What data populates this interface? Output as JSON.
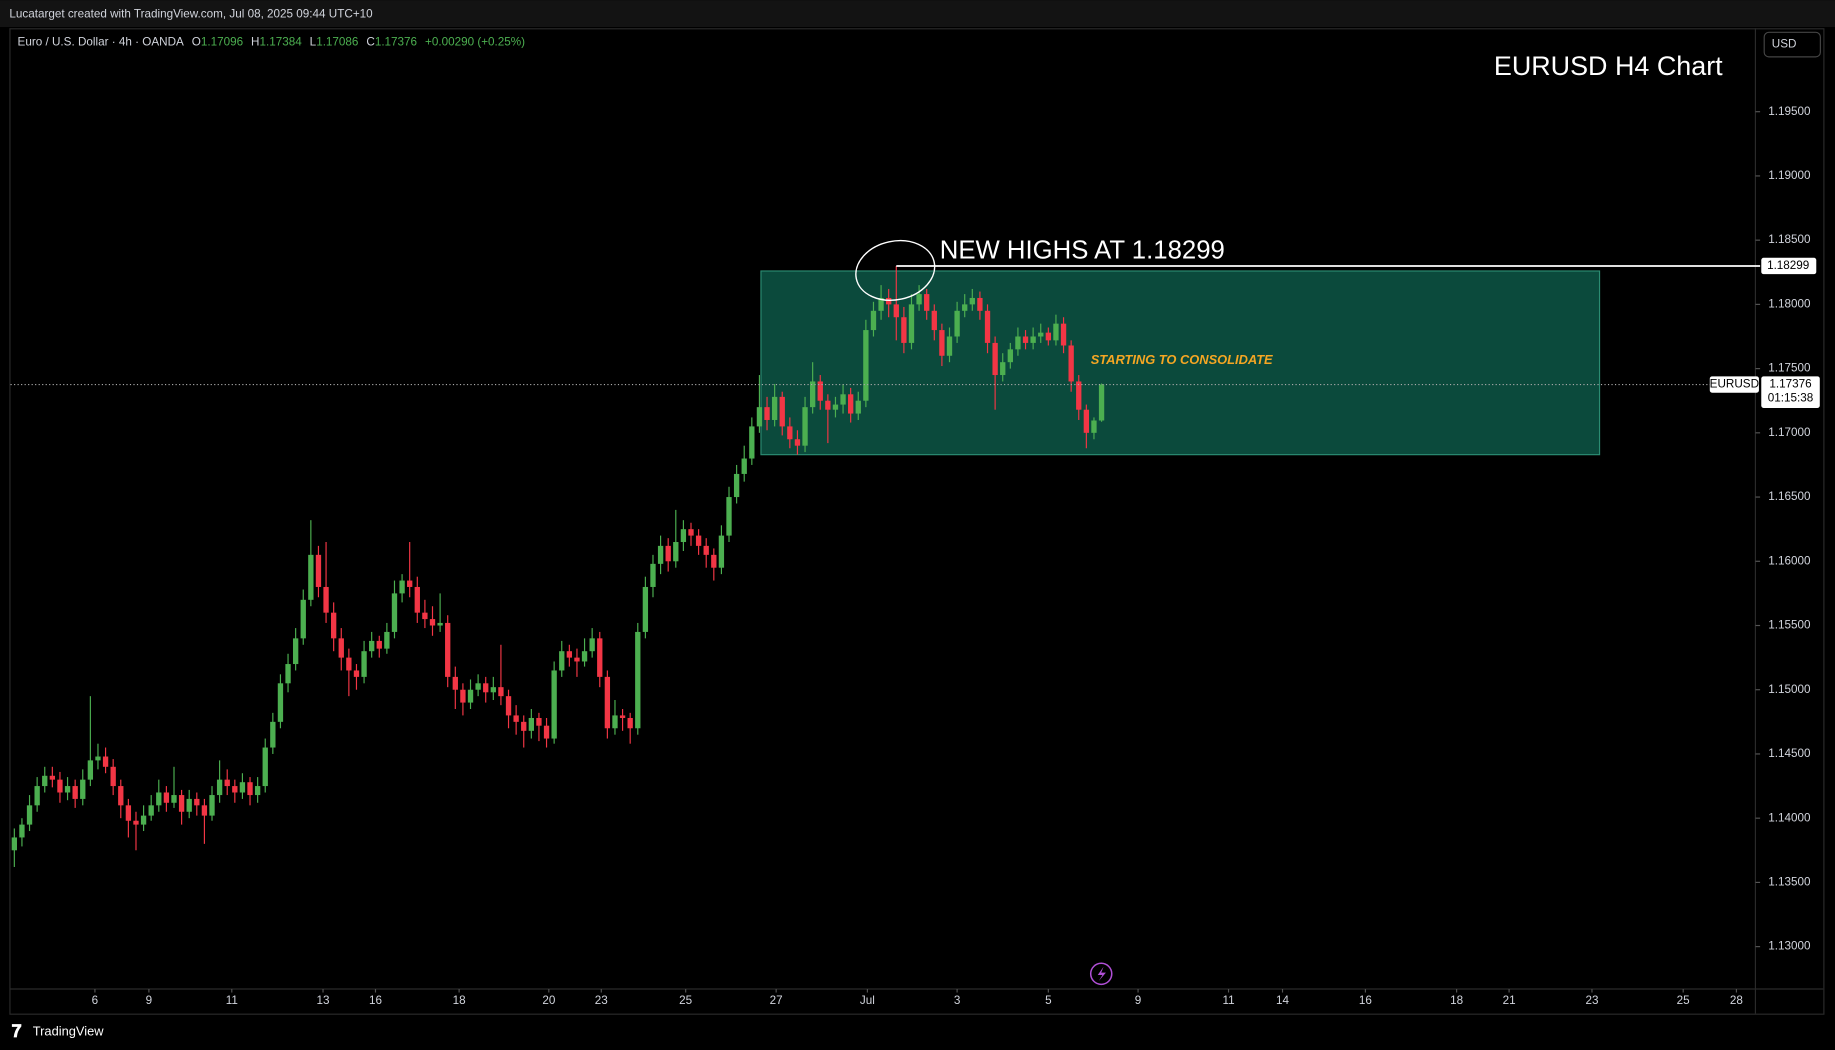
{
  "header": "Lucatarget created with TradingView.com, Jul 08, 2025 09:44 UTC+10",
  "footer": "TradingView",
  "currency": "USD",
  "chart_data": {
    "type": "candlestick",
    "title": "EURUSD H4 Chart",
    "legend": {
      "symbol": "Euro / U.S. Dollar · 4h · OANDA",
      "items": [
        {
          "key": "O",
          "value": 1.17096
        },
        {
          "key": "H",
          "value": 1.17384
        },
        {
          "key": "L",
          "value": 1.17086
        },
        {
          "key": "C",
          "value": 1.17376
        }
      ],
      "change": "+0.00290 (+0.25%)"
    },
    "up_color": "#4caf50",
    "down_color": "#f23645",
    "ohlc": [
      [
        1.1375,
        1.1392,
        1.1362,
        1.1385
      ],
      [
        1.1385,
        1.14,
        1.1378,
        1.1395
      ],
      [
        1.1395,
        1.1418,
        1.139,
        1.141
      ],
      [
        1.141,
        1.1432,
        1.1405,
        1.1425
      ],
      [
        1.1425,
        1.144,
        1.142,
        1.1433
      ],
      [
        1.1433,
        1.144,
        1.1424,
        1.143
      ],
      [
        1.143,
        1.1436,
        1.1412,
        1.142
      ],
      [
        1.142,
        1.1432,
        1.1414,
        1.1425
      ],
      [
        1.1425,
        1.143,
        1.1408,
        1.1415
      ],
      [
        1.1415,
        1.1438,
        1.141,
        1.143
      ],
      [
        1.143,
        1.1495,
        1.1425,
        1.1445
      ],
      [
        1.1445,
        1.1458,
        1.1438,
        1.1448
      ],
      [
        1.1448,
        1.1455,
        1.1435,
        1.144
      ],
      [
        1.144,
        1.1446,
        1.1418,
        1.1425
      ],
      [
        1.1425,
        1.143,
        1.14,
        1.141
      ],
      [
        1.141,
        1.1415,
        1.1385,
        1.1398
      ],
      [
        1.1398,
        1.1405,
        1.1375,
        1.1395
      ],
      [
        1.1395,
        1.141,
        1.139,
        1.1402
      ],
      [
        1.1402,
        1.1418,
        1.1398,
        1.141
      ],
      [
        1.141,
        1.143,
        1.1405,
        1.142
      ],
      [
        1.142,
        1.1425,
        1.1405,
        1.1412
      ],
      [
        1.1412,
        1.144,
        1.1408,
        1.1418
      ],
      [
        1.1418,
        1.1422,
        1.1395,
        1.1405
      ],
      [
        1.1405,
        1.1422,
        1.14,
        1.1415
      ],
      [
        1.1415,
        1.142,
        1.1402,
        1.141
      ],
      [
        1.141,
        1.1415,
        1.138,
        1.1402
      ],
      [
        1.1402,
        1.1425,
        1.1398,
        1.1418
      ],
      [
        1.1418,
        1.1445,
        1.1412,
        1.143
      ],
      [
        1.143,
        1.1438,
        1.1418,
        1.1425
      ],
      [
        1.1425,
        1.143,
        1.1412,
        1.142
      ],
      [
        1.142,
        1.1435,
        1.1415,
        1.1428
      ],
      [
        1.1428,
        1.1432,
        1.141,
        1.1418
      ],
      [
        1.1418,
        1.1432,
        1.1412,
        1.1425
      ],
      [
        1.1425,
        1.1462,
        1.142,
        1.1455
      ],
      [
        1.1455,
        1.1482,
        1.145,
        1.1475
      ],
      [
        1.1475,
        1.1512,
        1.147,
        1.1505
      ],
      [
        1.1505,
        1.1528,
        1.1498,
        1.152
      ],
      [
        1.152,
        1.1548,
        1.1515,
        1.154
      ],
      [
        1.154,
        1.1578,
        1.1535,
        1.157
      ],
      [
        1.157,
        1.1632,
        1.1565,
        1.1605
      ],
      [
        1.1605,
        1.1612,
        1.1572,
        1.158
      ],
      [
        1.158,
        1.1615,
        1.1552,
        1.156
      ],
      [
        1.156,
        1.1568,
        1.153,
        1.154
      ],
      [
        1.154,
        1.1548,
        1.1515,
        1.1525
      ],
      [
        1.1525,
        1.1532,
        1.1495,
        1.1515
      ],
      [
        1.1515,
        1.152,
        1.15,
        1.151
      ],
      [
        1.151,
        1.1538,
        1.1505,
        1.153
      ],
      [
        1.153,
        1.1545,
        1.1525,
        1.1538
      ],
      [
        1.1538,
        1.1542,
        1.1525,
        1.1532
      ],
      [
        1.1532,
        1.1552,
        1.1528,
        1.1545
      ],
      [
        1.1545,
        1.1585,
        1.154,
        1.1575
      ],
      [
        1.1575,
        1.159,
        1.1568,
        1.1585
      ],
      [
        1.1585,
        1.1615,
        1.1572,
        1.158
      ],
      [
        1.158,
        1.1588,
        1.1552,
        1.156
      ],
      [
        1.156,
        1.157,
        1.1548,
        1.1555
      ],
      [
        1.1555,
        1.1565,
        1.1542,
        1.155
      ],
      [
        1.155,
        1.1575,
        1.1545,
        1.1552
      ],
      [
        1.1552,
        1.1558,
        1.1502,
        1.151
      ],
      [
        1.151,
        1.1518,
        1.1485,
        1.15
      ],
      [
        1.15,
        1.1505,
        1.148,
        1.149
      ],
      [
        1.149,
        1.1508,
        1.1485,
        1.15
      ],
      [
        1.15,
        1.1512,
        1.1495,
        1.1505
      ],
      [
        1.1505,
        1.151,
        1.149,
        1.1498
      ],
      [
        1.1498,
        1.151,
        1.1492,
        1.1502
      ],
      [
        1.1502,
        1.1535,
        1.1488,
        1.1495
      ],
      [
        1.1495,
        1.15,
        1.147,
        1.148
      ],
      [
        1.148,
        1.1488,
        1.1465,
        1.1475
      ],
      [
        1.1475,
        1.148,
        1.1455,
        1.1468
      ],
      [
        1.1468,
        1.1485,
        1.1462,
        1.1478
      ],
      [
        1.1478,
        1.1482,
        1.146,
        1.1472
      ],
      [
        1.1472,
        1.1478,
        1.1455,
        1.1462
      ],
      [
        1.1462,
        1.1522,
        1.1458,
        1.1515
      ],
      [
        1.1515,
        1.1538,
        1.151,
        1.153
      ],
      [
        1.153,
        1.1535,
        1.1518,
        1.1525
      ],
      [
        1.1525,
        1.1532,
        1.151,
        1.1522
      ],
      [
        1.1522,
        1.154,
        1.1518,
        1.153
      ],
      [
        1.153,
        1.1548,
        1.1525,
        1.154
      ],
      [
        1.154,
        1.1545,
        1.1502,
        1.151
      ],
      [
        1.151,
        1.1515,
        1.1462,
        1.147
      ],
      [
        1.147,
        1.1492,
        1.1465,
        1.148
      ],
      [
        1.148,
        1.1485,
        1.1468,
        1.1478
      ],
      [
        1.1478,
        1.1482,
        1.1458,
        1.147
      ],
      [
        1.147,
        1.1552,
        1.1465,
        1.1545
      ],
      [
        1.1545,
        1.1588,
        1.154,
        1.158
      ],
      [
        1.158,
        1.1605,
        1.1572,
        1.1598
      ],
      [
        1.1598,
        1.162,
        1.159,
        1.1612
      ],
      [
        1.1612,
        1.1618,
        1.1592,
        1.16
      ],
      [
        1.16,
        1.164,
        1.1595,
        1.1615
      ],
      [
        1.1615,
        1.1632,
        1.1608,
        1.1625
      ],
      [
        1.1625,
        1.163,
        1.1612,
        1.162
      ],
      [
        1.162,
        1.1625,
        1.1605,
        1.1612
      ],
      [
        1.1612,
        1.1618,
        1.1595,
        1.1605
      ],
      [
        1.1605,
        1.161,
        1.1585,
        1.1595
      ],
      [
        1.1595,
        1.1628,
        1.159,
        1.162
      ],
      [
        1.162,
        1.1658,
        1.1615,
        1.165
      ],
      [
        1.165,
        1.1675,
        1.1645,
        1.1668
      ],
      [
        1.1668,
        1.169,
        1.1662,
        1.168
      ],
      [
        1.168,
        1.1712,
        1.1675,
        1.1705
      ],
      [
        1.1705,
        1.1745,
        1.17,
        1.172
      ],
      [
        1.172,
        1.1728,
        1.1702,
        1.171
      ],
      [
        1.171,
        1.1738,
        1.1705,
        1.1728
      ],
      [
        1.1728,
        1.1732,
        1.1698,
        1.1705
      ],
      [
        1.1705,
        1.1712,
        1.1688,
        1.1695
      ],
      [
        1.1695,
        1.1702,
        1.1683,
        1.169
      ],
      [
        1.169,
        1.1728,
        1.1685,
        1.172
      ],
      [
        1.172,
        1.1755,
        1.1715,
        1.174
      ],
      [
        1.174,
        1.1745,
        1.1718,
        1.1725
      ],
      [
        1.1725,
        1.173,
        1.1692,
        1.1718
      ],
      [
        1.1718,
        1.1728,
        1.1712,
        1.1722
      ],
      [
        1.1722,
        1.1738,
        1.1715,
        1.173
      ],
      [
        1.173,
        1.1735,
        1.1708,
        1.1715
      ],
      [
        1.1715,
        1.1732,
        1.171,
        1.1725
      ],
      [
        1.1725,
        1.1788,
        1.172,
        1.178
      ],
      [
        1.178,
        1.1802,
        1.1775,
        1.1795
      ],
      [
        1.1795,
        1.1815,
        1.1788,
        1.1805
      ],
      [
        1.1805,
        1.1812,
        1.179,
        1.18
      ],
      [
        1.18,
        1.18299,
        1.1772,
        1.179
      ],
      [
        1.179,
        1.1798,
        1.1762,
        1.177
      ],
      [
        1.177,
        1.1808,
        1.1765,
        1.18
      ],
      [
        1.18,
        1.1815,
        1.1795,
        1.1808
      ],
      [
        1.1808,
        1.1812,
        1.1788,
        1.1795
      ],
      [
        1.1795,
        1.18,
        1.1772,
        1.178
      ],
      [
        1.178,
        1.1785,
        1.1752,
        1.176
      ],
      [
        1.176,
        1.1782,
        1.1755,
        1.1775
      ],
      [
        1.1775,
        1.1802,
        1.177,
        1.1795
      ],
      [
        1.1795,
        1.1808,
        1.179,
        1.18
      ],
      [
        1.18,
        1.1812,
        1.1795,
        1.1805
      ],
      [
        1.1805,
        1.181,
        1.1788,
        1.1795
      ],
      [
        1.1795,
        1.18,
        1.1762,
        1.177
      ],
      [
        1.177,
        1.1775,
        1.1718,
        1.1745
      ],
      [
        1.1745,
        1.1762,
        1.174,
        1.1755
      ],
      [
        1.1755,
        1.177,
        1.175,
        1.1765
      ],
      [
        1.1765,
        1.1782,
        1.176,
        1.1775
      ],
      [
        1.1775,
        1.178,
        1.1765,
        1.177
      ],
      [
        1.177,
        1.1782,
        1.1765,
        1.1775
      ],
      [
        1.1775,
        1.1785,
        1.177,
        1.1778
      ],
      [
        1.1778,
        1.1782,
        1.1768,
        1.1772
      ],
      [
        1.1772,
        1.1792,
        1.1768,
        1.1785
      ],
      [
        1.1785,
        1.179,
        1.1762,
        1.1768
      ],
      [
        1.1768,
        1.1772,
        1.1732,
        1.174
      ],
      [
        1.174,
        1.1745,
        1.171,
        1.1718
      ],
      [
        1.1718,
        1.1722,
        1.1688,
        1.17
      ],
      [
        1.17,
        1.1712,
        1.1695,
        1.17096
      ],
      [
        1.17096,
        1.17384,
        1.17086,
        1.17376
      ]
    ],
    "xlim": [
      -0.5,
      229
    ],
    "xticks": [
      {
        "value": 10.6,
        "label": "6"
      },
      {
        "value": 17.7,
        "label": "9"
      },
      {
        "value": 28.6,
        "label": "11"
      },
      {
        "value": 40.6,
        "label": "13"
      },
      {
        "value": 47.5,
        "label": "16"
      },
      {
        "value": 58.5,
        "label": "18"
      },
      {
        "value": 70.3,
        "label": "20"
      },
      {
        "value": 77.2,
        "label": "23"
      },
      {
        "value": 88.3,
        "label": "25"
      },
      {
        "value": 100.2,
        "label": "27"
      },
      {
        "value": 112.2,
        "label": "Jul"
      },
      {
        "value": 124,
        "label": "3"
      },
      {
        "value": 136,
        "label": "5"
      },
      {
        "value": 147.8,
        "label": "9"
      },
      {
        "value": 159.7,
        "label": "11"
      },
      {
        "value": 166.8,
        "label": "14"
      },
      {
        "value": 177.7,
        "label": "16"
      },
      {
        "value": 189.7,
        "label": "18"
      },
      {
        "value": 196.6,
        "label": "21"
      },
      {
        "value": 207.5,
        "label": "23"
      },
      {
        "value": 219.5,
        "label": "25"
      },
      {
        "value": 226.5,
        "label": "28"
      }
    ],
    "ylim": [
      1.1267,
      1.2015
    ],
    "yticks": [
      {
        "value": 1.13,
        "label": "1.13000"
      },
      {
        "value": 1.135,
        "label": "1.13500"
      },
      {
        "value": 1.14,
        "label": "1.14000"
      },
      {
        "value": 1.145,
        "label": "1.14500"
      },
      {
        "value": 1.15,
        "label": "1.15000"
      },
      {
        "value": 1.155,
        "label": "1.15500"
      },
      {
        "value": 1.16,
        "label": "1.16000"
      },
      {
        "value": 1.165,
        "label": "1.16500"
      },
      {
        "value": 1.17,
        "label": "1.17000"
      },
      {
        "value": 1.175,
        "label": "1.17500"
      },
      {
        "value": 1.18,
        "label": "1.18000"
      },
      {
        "value": 1.185,
        "label": "1.18500"
      },
      {
        "value": 1.19,
        "label": "1.19000"
      },
      {
        "value": 1.195,
        "label": "1.19500"
      }
    ],
    "hline": {
      "value": 1.18299,
      "label": "1.18299",
      "from": 116
    },
    "annotation": "NEW HIGHS AT 1.18299",
    "zone": {
      "x": [
        98.2,
        208.5
      ],
      "y": [
        1.1683,
        1.1826
      ],
      "label": "STARTING TO CONSOLIDATE",
      "color": "#0b4a3c"
    },
    "last_price": {
      "symbol": "EURUSD",
      "value": 1.17376,
      "countdown": "01:15:38"
    }
  }
}
